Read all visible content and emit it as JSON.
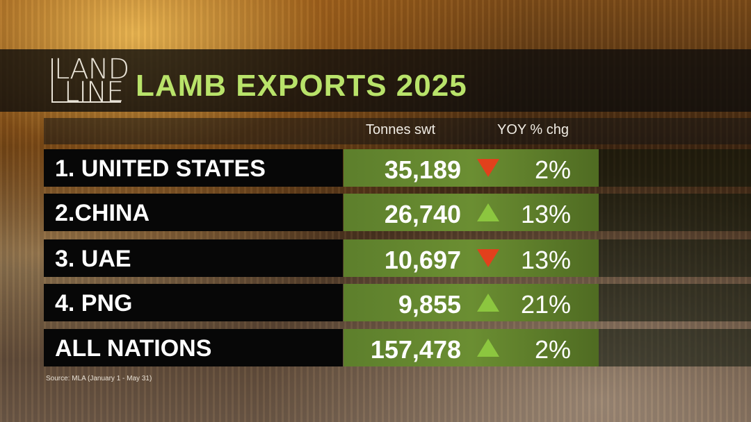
{
  "brand": {
    "line1": "LAND",
    "line2": "LINE"
  },
  "title": "LAMB EXPORTS 2025",
  "columns": {
    "tonnes": "Tonnes swt",
    "yoy": "YOY % chg"
  },
  "colors": {
    "accent": "#b9e36a",
    "up": "#8cc63f",
    "down": "#e2401c",
    "value_cell": "#6b8e32"
  },
  "chart_data": {
    "type": "table",
    "title": "LAMB EXPORTS 2025",
    "columns": [
      "",
      "Tonnes swt",
      "YOY % chg"
    ],
    "rows": [
      {
        "label": "1. UNITED STATES",
        "tonnes": "35,189",
        "tonnes_value": 35189,
        "direction": "down",
        "yoy": "2%"
      },
      {
        "label": "2.CHINA",
        "tonnes": "26,740",
        "tonnes_value": 26740,
        "direction": "up",
        "yoy": "13%"
      },
      {
        "label": "3. UAE",
        "tonnes": "10,697",
        "tonnes_value": 10697,
        "direction": "down",
        "yoy": "13%"
      },
      {
        "label": "4. PNG",
        "tonnes": "9,855",
        "tonnes_value": 9855,
        "direction": "up",
        "yoy": "21%"
      },
      {
        "label": "ALL NATIONS",
        "tonnes": "157,478",
        "tonnes_value": 157478,
        "direction": "up",
        "yoy": "2%"
      }
    ]
  },
  "source": "Source: MLA (January 1 - May 31)"
}
